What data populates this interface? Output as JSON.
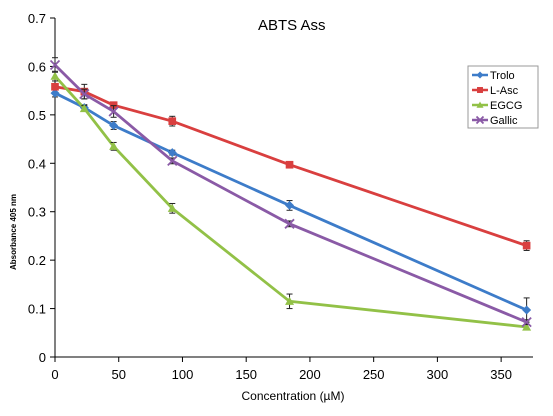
{
  "chart_data": {
    "type": "line",
    "title": "ABTS   Ass",
    "xlabel": "Concentration (µM)",
    "ylabel": "Absorbance 405 nm",
    "xlim": [
      0,
      375
    ],
    "ylim": [
      0,
      0.7
    ],
    "xticks": [
      "0",
      "50",
      "100",
      "150",
      "200",
      "250",
      "300",
      "350"
    ],
    "yticks": [
      "0",
      "0.1",
      "0.2",
      "0.3",
      "0.4",
      "0.5",
      "0.6",
      "0.7"
    ],
    "x": [
      0,
      23,
      46,
      92,
      184,
      370
    ],
    "grid": false,
    "legend_position": "top-right",
    "series": [
      {
        "name": "Trolo",
        "color": "#3d7cc9",
        "marker": "diamond",
        "values": [
          0.545,
          0.515,
          0.478,
          0.422,
          0.313,
          0.097
        ],
        "errors": [
          0.008,
          0.006,
          0.008,
          0.005,
          0.01,
          0.025
        ]
      },
      {
        "name": "L-Asc",
        "color": "#d93f3f",
        "marker": "square",
        "values": [
          0.558,
          0.548,
          0.52,
          0.487,
          0.397,
          0.23
        ],
        "errors": [
          0.006,
          0.015,
          0.005,
          0.01,
          0.006,
          0.01
        ]
      },
      {
        "name": "EGCG",
        "color": "#92c147",
        "marker": "triangle",
        "values": [
          0.58,
          0.513,
          0.435,
          0.307,
          0.115,
          0.062
        ],
        "errors": [
          0.01,
          0.006,
          0.008,
          0.01,
          0.015,
          0.005
        ]
      },
      {
        "name": "Gallic",
        "color": "#8a5aa6",
        "marker": "x",
        "values": [
          0.603,
          0.543,
          0.507,
          0.405,
          0.275,
          0.072
        ],
        "errors": [
          0.015,
          0.01,
          0.012,
          0.006,
          0.006,
          0.005
        ]
      }
    ]
  }
}
